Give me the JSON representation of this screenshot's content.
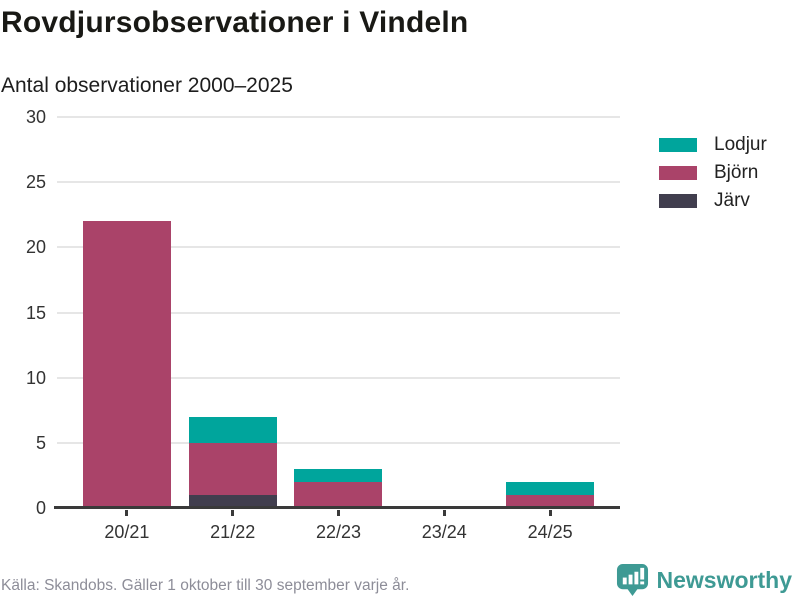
{
  "header": {
    "title": "Rovdjursobservationer i Vindeln",
    "subtitle": "Antal observationer 2000–2025"
  },
  "chart_data": {
    "type": "bar",
    "stacked": true,
    "title": "Rovdjursobservationer i Vindeln",
    "subtitle": "Antal observationer 2000–2025",
    "categories": [
      "20/21",
      "21/22",
      "22/23",
      "23/24",
      "24/25"
    ],
    "series": [
      {
        "name": "Lodjur",
        "color": "#00a59c",
        "values": [
          0,
          2,
          1,
          0,
          1
        ]
      },
      {
        "name": "Björn",
        "color": "#aa4369",
        "values": [
          22,
          4,
          2,
          0,
          1
        ]
      },
      {
        "name": "Järv",
        "color": "#413e4e",
        "values": [
          0,
          1,
          0,
          0,
          0
        ]
      }
    ],
    "stack_order_bottom_to_top": [
      "Järv",
      "Björn",
      "Lodjur"
    ],
    "totals": [
      22,
      7,
      3,
      0,
      2
    ],
    "xlabel": "",
    "ylabel": "",
    "ylim": [
      0,
      30
    ],
    "yticks": [
      0,
      5,
      10,
      15,
      20,
      25,
      30
    ],
    "grid": true,
    "legend_position": "right"
  },
  "footer": {
    "source": "Källa: Skandobs. Gäller 1 oktober till 30 september varje år.",
    "brand": "Newsworthy"
  },
  "colors": {
    "lodjur": "#00a59c",
    "bjorn": "#aa4369",
    "jarv": "#413e4e",
    "gridline": "#e6e6e6",
    "axis": "#3a3a3a",
    "brand_teal": "#3e9a94"
  }
}
